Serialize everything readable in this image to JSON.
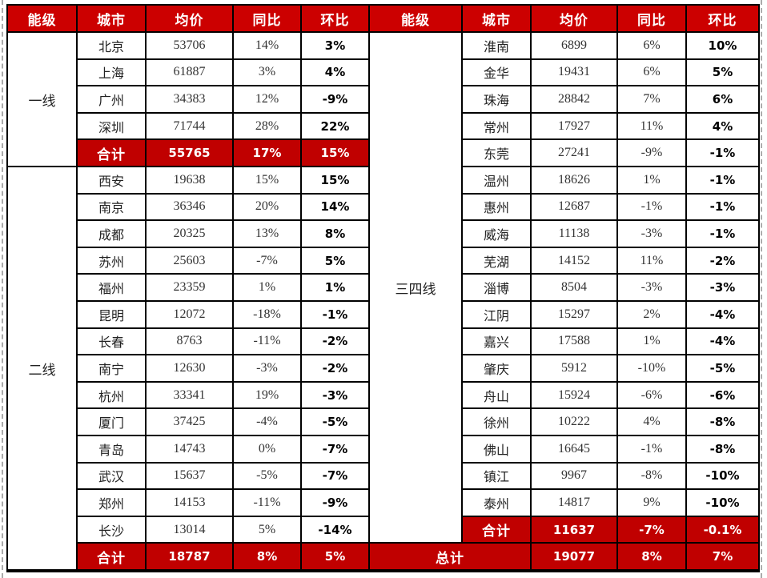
{
  "colors": {
    "header-red": "#cc0000",
    "total-red": "#c00000",
    "border": "#000000",
    "dash": "#ababab"
  },
  "chart_data": {
    "type": "table",
    "columns": [
      "能级",
      "城市",
      "均价",
      "同比",
      "环比"
    ],
    "sections": [
      {
        "side": "left",
        "tier": "一线",
        "rows": [
          [
            "北京",
            "53706",
            "14%",
            "3%"
          ],
          [
            "上海",
            "61887",
            "3%",
            "4%"
          ],
          [
            "广州",
            "34383",
            "12%",
            "-9%"
          ],
          [
            "深圳",
            "71744",
            "28%",
            "22%"
          ]
        ],
        "total": [
          "合计",
          "55765",
          "17%",
          "15%"
        ]
      },
      {
        "side": "left",
        "tier": "二线",
        "rows": [
          [
            "西安",
            "19638",
            "15%",
            "15%"
          ],
          [
            "南京",
            "36346",
            "20%",
            "14%"
          ],
          [
            "成都",
            "20325",
            "13%",
            "8%"
          ],
          [
            "苏州",
            "25603",
            "-7%",
            "5%"
          ],
          [
            "福州",
            "23359",
            "1%",
            "1%"
          ],
          [
            "昆明",
            "12072",
            "-18%",
            "-1%"
          ],
          [
            "长春",
            "8763",
            "-11%",
            "-2%"
          ],
          [
            "南宁",
            "12630",
            "-3%",
            "-2%"
          ],
          [
            "杭州",
            "33341",
            "19%",
            "-3%"
          ],
          [
            "厦门",
            "37425",
            "-4%",
            "-5%"
          ],
          [
            "青岛",
            "14743",
            "0%",
            "-7%"
          ],
          [
            "武汉",
            "15637",
            "-5%",
            "-7%"
          ],
          [
            "郑州",
            "14153",
            "-11%",
            "-9%"
          ],
          [
            "长沙",
            "13014",
            "5%",
            "-14%"
          ]
        ],
        "total": [
          "合计",
          "18787",
          "8%",
          "5%"
        ]
      },
      {
        "side": "right",
        "tier": "三四线",
        "rows": [
          [
            "淮南",
            "6899",
            "6%",
            "10%"
          ],
          [
            "金华",
            "19431",
            "6%",
            "5%"
          ],
          [
            "珠海",
            "28842",
            "7%",
            "6%"
          ],
          [
            "常州",
            "17927",
            "11%",
            "4%"
          ],
          [
            "东莞",
            "27241",
            "-9%",
            "-1%"
          ],
          [
            "温州",
            "18626",
            "1%",
            "-1%"
          ],
          [
            "惠州",
            "12687",
            "-1%",
            "-1%"
          ],
          [
            "威海",
            "11138",
            "-3%",
            "-1%"
          ],
          [
            "芜湖",
            "14152",
            "11%",
            "-2%"
          ],
          [
            "淄博",
            "8504",
            "-3%",
            "-3%"
          ],
          [
            "江阴",
            "15297",
            "2%",
            "-4%"
          ],
          [
            "嘉兴",
            "17588",
            "1%",
            "-4%"
          ],
          [
            "肇庆",
            "5912",
            "-10%",
            "-5%"
          ],
          [
            "舟山",
            "15924",
            "-6%",
            "-6%"
          ],
          [
            "徐州",
            "10222",
            "4%",
            "-8%"
          ],
          [
            "佛山",
            "16645",
            "-1%",
            "-8%"
          ],
          [
            "镇江",
            "9967",
            "-8%",
            "-10%"
          ],
          [
            "泰州",
            "14817",
            "9%",
            "-10%"
          ]
        ],
        "total": [
          "合计",
          "11637",
          "-7%",
          "-0.1%"
        ]
      }
    ],
    "grand_total": [
      "总计",
      "19077",
      "8%",
      "7%"
    ]
  }
}
